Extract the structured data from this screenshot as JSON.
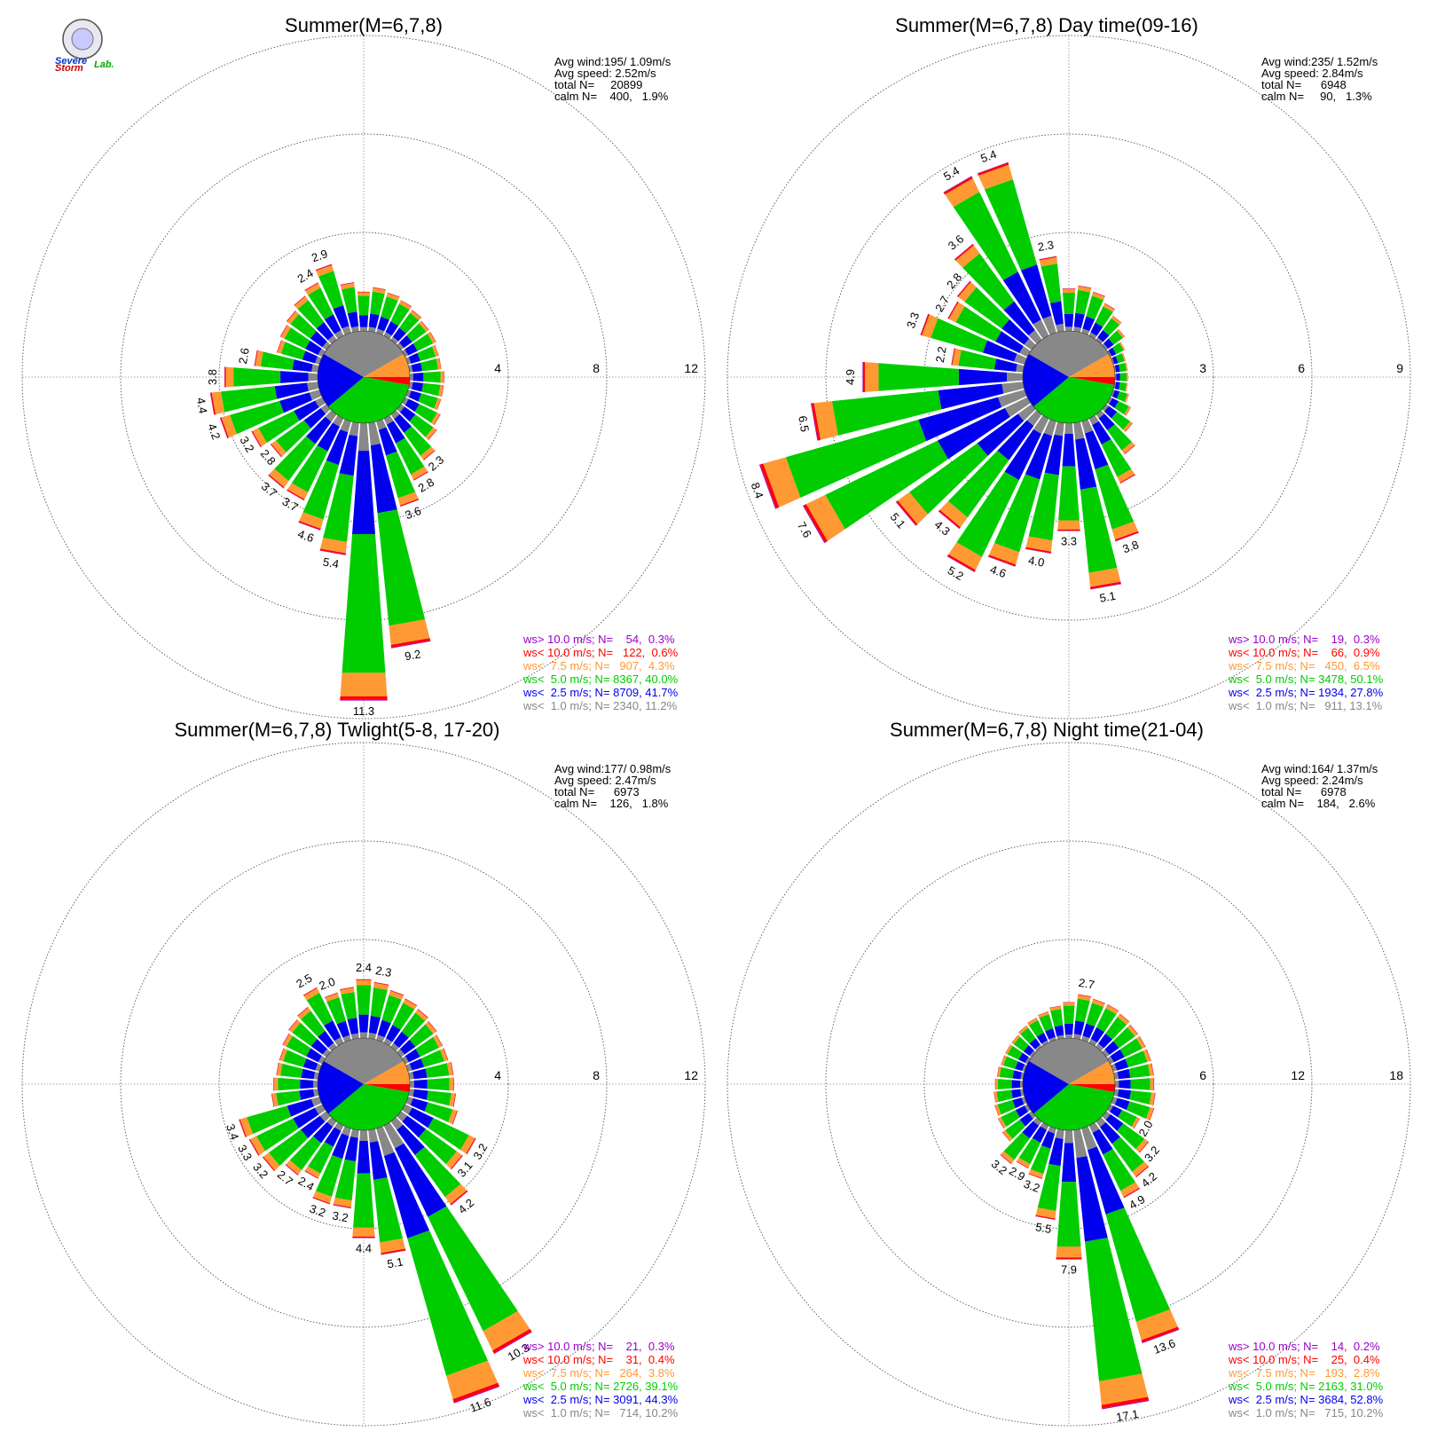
{
  "colors": {
    "gt10": "#9900cc",
    "lt10": "#ff0000",
    "lt7_5": "#ff9933",
    "lt5": "#00cc00",
    "lt2_5": "#0000ee",
    "lt1": "#888888"
  },
  "logo": {
    "text_a": "Severe",
    "text_b": "Storm",
    "text_c": "Lab."
  },
  "chart_data": [
    {
      "type": "windrose",
      "title": "Summer(M=6,7,8)",
      "stats": [
        "Avg wind:195/ 1.09m/s",
        "Avg speed: 2.52m/s",
        "total N=     20899",
        "calm N=    400,   1.9%"
      ],
      "rmax": 12,
      "ring_values": [
        4,
        8,
        12
      ],
      "ring_labels": [
        "4",
        "8",
        "12"
      ],
      "legend": [
        {
          "key": "gt10",
          "text": "ws> 10.0 m/s; N=    54,  0.3%"
        },
        {
          "key": "lt10",
          "text": "ws< 10.0 m/s; N=   122,  0.6%"
        },
        {
          "key": "lt7_5",
          "text": "ws<  7.5 m/s; N=   907,  4.3%"
        },
        {
          "key": "lt5",
          "text": "ws<  5.0 m/s; N= 8367, 40.0%"
        },
        {
          "key": "lt2_5",
          "text": "ws<  2.5 m/s; N= 8709, 41.7%"
        },
        {
          "key": "lt1",
          "text": "ws<  1.0 m/s; N= 2340, 11.2%"
        }
      ],
      "directions": [
        {
          "dir": 0,
          "total": 1.6,
          "label": ""
        },
        {
          "dir": 10,
          "total": 1.8,
          "label": ""
        },
        {
          "dir": 20,
          "total": 1.7,
          "label": ""
        },
        {
          "dir": 30,
          "total": 1.6,
          "label": ""
        },
        {
          "dir": 40,
          "total": 1.5,
          "label": ""
        },
        {
          "dir": 50,
          "total": 1.4,
          "label": ""
        },
        {
          "dir": 60,
          "total": 1.4,
          "label": ""
        },
        {
          "dir": 70,
          "total": 1.3,
          "label": ""
        },
        {
          "dir": 80,
          "total": 1.3,
          "label": ""
        },
        {
          "dir": 90,
          "total": 1.4,
          "label": ""
        },
        {
          "dir": 100,
          "total": 1.4,
          "label": ""
        },
        {
          "dir": 110,
          "total": 1.4,
          "label": ""
        },
        {
          "dir": 120,
          "total": 1.6,
          "label": ""
        },
        {
          "dir": 130,
          "total": 1.8,
          "label": ""
        },
        {
          "dir": 140,
          "total": 2.3,
          "label": "2.3"
        },
        {
          "dir": 150,
          "total": 2.8,
          "label": "2.8"
        },
        {
          "dir": 160,
          "total": 3.6,
          "label": "3.6"
        },
        {
          "dir": 170,
          "total": 9.2,
          "label": "9.2"
        },
        {
          "dir": 180,
          "total": 11.3,
          "label": "11.3"
        },
        {
          "dir": 190,
          "total": 5.4,
          "label": "5.4"
        },
        {
          "dir": 200,
          "total": 4.6,
          "label": "4.6"
        },
        {
          "dir": 210,
          "total": 3.7,
          "label": "3.7"
        },
        {
          "dir": 220,
          "total": 3.7,
          "label": "3.7"
        },
        {
          "dir": 230,
          "total": 2.8,
          "label": "2.8"
        },
        {
          "dir": 240,
          "total": 3.2,
          "label": "3.2"
        },
        {
          "dir": 250,
          "total": 4.2,
          "label": "4.2"
        },
        {
          "dir": 260,
          "total": 4.4,
          "label": "4.4"
        },
        {
          "dir": 270,
          "total": 3.8,
          "label": "3.8"
        },
        {
          "dir": 280,
          "total": 2.6,
          "label": "2.6"
        },
        {
          "dir": 290,
          "total": 1.8,
          "label": ""
        },
        {
          "dir": 300,
          "total": 1.9,
          "label": ""
        },
        {
          "dir": 310,
          "total": 2.0,
          "label": ""
        },
        {
          "dir": 320,
          "total": 2.2,
          "label": ""
        },
        {
          "dir": 330,
          "total": 2.4,
          "label": "2.4"
        },
        {
          "dir": 340,
          "total": 2.9,
          "label": "2.9"
        },
        {
          "dir": 350,
          "total": 2.0,
          "label": ""
        }
      ]
    },
    {
      "type": "windrose",
      "title": "Summer(M=6,7,8) Day time(09-16)",
      "stats": [
        "Avg wind:235/ 1.52m/s",
        "Avg speed: 2.84m/s",
        "total N=      6948",
        "calm N=     90,   1.3%"
      ],
      "rmax": 9,
      "ring_values": [
        3,
        6,
        9
      ],
      "ring_labels": [
        "3",
        "6",
        "9"
      ],
      "legend": [
        {
          "key": "gt10",
          "text": "ws> 10.0 m/s; N=    19,  0.3%"
        },
        {
          "key": "lt10",
          "text": "ws< 10.0 m/s; N=    66,  0.9%"
        },
        {
          "key": "lt7_5",
          "text": "ws<  7.5 m/s; N=   450,  6.5%"
        },
        {
          "key": "lt5",
          "text": "ws<  5.0 m/s; N= 3478, 50.1%"
        },
        {
          "key": "lt2_5",
          "text": "ws<  2.5 m/s; N= 1934, 27.8%"
        },
        {
          "key": "lt1",
          "text": "ws<  1.0 m/s; N=   911, 13.1%"
        }
      ],
      "directions": [
        {
          "dir": 0,
          "total": 1.3,
          "label": ""
        },
        {
          "dir": 10,
          "total": 1.4,
          "label": ""
        },
        {
          "dir": 20,
          "total": 1.3,
          "label": ""
        },
        {
          "dir": 30,
          "total": 1.1,
          "label": ""
        },
        {
          "dir": 40,
          "total": 0.9,
          "label": ""
        },
        {
          "dir": 50,
          "total": 0.7,
          "label": ""
        },
        {
          "dir": 60,
          "total": 0.5,
          "label": ""
        },
        {
          "dir": 70,
          "total": 0.4,
          "label": ""
        },
        {
          "dir": 80,
          "total": 0.4,
          "label": ""
        },
        {
          "dir": 90,
          "total": 0.4,
          "label": ""
        },
        {
          "dir": 100,
          "total": 0.4,
          "label": ""
        },
        {
          "dir": 110,
          "total": 0.5,
          "label": ""
        },
        {
          "dir": 120,
          "total": 0.7,
          "label": ""
        },
        {
          "dir": 130,
          "total": 1.0,
          "label": ""
        },
        {
          "dir": 140,
          "total": 1.5,
          "label": ""
        },
        {
          "dir": 150,
          "total": 2.2,
          "label": ""
        },
        {
          "dir": 160,
          "total": 3.8,
          "label": "3.8"
        },
        {
          "dir": 170,
          "total": 5.1,
          "label": "5.1"
        },
        {
          "dir": 180,
          "total": 3.3,
          "label": "3.3"
        },
        {
          "dir": 190,
          "total": 4.0,
          "label": "4.0"
        },
        {
          "dir": 200,
          "total": 4.6,
          "label": "4.6"
        },
        {
          "dir": 210,
          "total": 5.2,
          "label": "5.2"
        },
        {
          "dir": 220,
          "total": 4.3,
          "label": "4.3"
        },
        {
          "dir": 230,
          "total": 5.1,
          "label": "5.1"
        },
        {
          "dir": 240,
          "total": 7.6,
          "label": "7.6"
        },
        {
          "dir": 250,
          "total": 8.4,
          "label": "8.4"
        },
        {
          "dir": 260,
          "total": 6.5,
          "label": "6.5"
        },
        {
          "dir": 270,
          "total": 4.9,
          "label": "4.9"
        },
        {
          "dir": 280,
          "total": 2.2,
          "label": "2.2"
        },
        {
          "dir": 290,
          "total": 3.3,
          "label": "3.3"
        },
        {
          "dir": 300,
          "total": 2.7,
          "label": "2.7"
        },
        {
          "dir": 310,
          "total": 2.8,
          "label": "2.8"
        },
        {
          "dir": 320,
          "total": 3.6,
          "label": "3.6"
        },
        {
          "dir": 330,
          "total": 5.4,
          "label": "5.4"
        },
        {
          "dir": 340,
          "total": 5.4,
          "label": "5.4"
        },
        {
          "dir": 350,
          "total": 2.3,
          "label": "2.3"
        }
      ]
    },
    {
      "type": "windrose",
      "title": "Summer(M=6,7,8) Twlight(5-8, 17-20)",
      "stats": [
        "Avg wind:177/ 0.98m/s",
        "Avg speed: 2.47m/s",
        "total N=      6973",
        "calm N=    126,   1.8%"
      ],
      "rmax": 12,
      "ring_values": [
        4,
        8,
        12
      ],
      "ring_labels": [
        "4",
        "8",
        "12"
      ],
      "legend": [
        {
          "key": "gt10",
          "text": "ws> 10.0 m/s; N=    21,  0.3%"
        },
        {
          "key": "lt10",
          "text": "ws< 10.0 m/s; N=    31,  0.4%"
        },
        {
          "key": "lt7_5",
          "text": "ws<  7.5 m/s; N=   264,  3.8%"
        },
        {
          "key": "lt5",
          "text": "ws<  5.0 m/s; N= 2726, 39.1%"
        },
        {
          "key": "lt2_5",
          "text": "ws<  2.5 m/s; N= 3091, 44.3%"
        },
        {
          "key": "lt1",
          "text": "ws<  1.0 m/s; N=   714, 10.2%"
        }
      ],
      "directions": [
        {
          "dir": 0,
          "total": 2.4,
          "label": "2.4"
        },
        {
          "dir": 10,
          "total": 2.3,
          "label": "2.3"
        },
        {
          "dir": 20,
          "total": 2.1,
          "label": ""
        },
        {
          "dir": 30,
          "total": 2.0,
          "label": ""
        },
        {
          "dir": 40,
          "total": 1.9,
          "label": ""
        },
        {
          "dir": 50,
          "total": 1.8,
          "label": ""
        },
        {
          "dir": 60,
          "total": 1.7,
          "label": ""
        },
        {
          "dir": 70,
          "total": 1.7,
          "label": ""
        },
        {
          "dir": 80,
          "total": 1.8,
          "label": ""
        },
        {
          "dir": 90,
          "total": 1.8,
          "label": ""
        },
        {
          "dir": 100,
          "total": 1.9,
          "label": ""
        },
        {
          "dir": 110,
          "total": 2.1,
          "label": ""
        },
        {
          "dir": 120,
          "total": 3.2,
          "label": "3.2"
        },
        {
          "dir": 130,
          "total": 3.1,
          "label": "3.1"
        },
        {
          "dir": 140,
          "total": 4.2,
          "label": "4.2"
        },
        {
          "dir": 150,
          "total": 10.3,
          "label": "10.3"
        },
        {
          "dir": 160,
          "total": 11.6,
          "label": "11.6"
        },
        {
          "dir": 170,
          "total": 5.1,
          "label": "5.1"
        },
        {
          "dir": 180,
          "total": 4.4,
          "label": "4.4"
        },
        {
          "dir": 190,
          "total": 3.2,
          "label": "3.2"
        },
        {
          "dir": 200,
          "total": 3.2,
          "label": "3.2"
        },
        {
          "dir": 210,
          "total": 2.4,
          "label": "2.4"
        },
        {
          "dir": 220,
          "total": 2.7,
          "label": "2.7"
        },
        {
          "dir": 230,
          "total": 3.2,
          "label": "3.2"
        },
        {
          "dir": 240,
          "total": 3.3,
          "label": "3.3"
        },
        {
          "dir": 250,
          "total": 3.4,
          "label": "3.4"
        },
        {
          "dir": 260,
          "total": 1.9,
          "label": ""
        },
        {
          "dir": 270,
          "total": 1.8,
          "label": ""
        },
        {
          "dir": 280,
          "total": 1.7,
          "label": ""
        },
        {
          "dir": 290,
          "total": 1.7,
          "label": ""
        },
        {
          "dir": 300,
          "total": 1.8,
          "label": ""
        },
        {
          "dir": 310,
          "total": 1.9,
          "label": ""
        },
        {
          "dir": 320,
          "total": 2.0,
          "label": ""
        },
        {
          "dir": 330,
          "total": 2.5,
          "label": "2.5"
        },
        {
          "dir": 340,
          "total": 2.0,
          "label": "2.0"
        },
        {
          "dir": 350,
          "total": 2.1,
          "label": ""
        }
      ]
    },
    {
      "type": "windrose",
      "title": "Summer(M=6,7,8) Night time(21-04)",
      "stats": [
        "Avg wind:164/ 1.37m/s",
        "Avg speed: 2.24m/s",
        "total N=      6978",
        "calm N=    184,   2.6%"
      ],
      "rmax": 18,
      "ring_values": [
        6,
        12,
        18
      ],
      "ring_labels": [
        "6",
        "12",
        "18"
      ],
      "legend": [
        {
          "key": "gt10",
          "text": "ws> 10.0 m/s; N=    14,  0.2%"
        },
        {
          "key": "lt10",
          "text": "ws< 10.0 m/s; N=    25,  0.4%"
        },
        {
          "key": "lt7_5",
          "text": "ws<  7.5 m/s; N=   193,  2.8%"
        },
        {
          "key": "lt5",
          "text": "ws<  5.0 m/s; N= 2163, 31.0%"
        },
        {
          "key": "lt2_5",
          "text": "ws<  2.5 m/s; N= 3684, 52.8%"
        },
        {
          "key": "lt1",
          "text": "ws<  1.0 m/s; N=   715, 10.2%"
        }
      ],
      "directions": [
        {
          "dir": 0,
          "total": 2.2,
          "label": ""
        },
        {
          "dir": 10,
          "total": 2.7,
          "label": "2.7"
        },
        {
          "dir": 20,
          "total": 2.6,
          "label": ""
        },
        {
          "dir": 30,
          "total": 2.6,
          "label": ""
        },
        {
          "dir": 40,
          "total": 2.5,
          "label": ""
        },
        {
          "dir": 50,
          "total": 2.4,
          "label": ""
        },
        {
          "dir": 60,
          "total": 2.4,
          "label": ""
        },
        {
          "dir": 70,
          "total": 2.4,
          "label": ""
        },
        {
          "dir": 80,
          "total": 2.4,
          "label": ""
        },
        {
          "dir": 90,
          "total": 2.4,
          "label": ""
        },
        {
          "dir": 100,
          "total": 2.5,
          "label": ""
        },
        {
          "dir": 110,
          "total": 2.6,
          "label": ""
        },
        {
          "dir": 120,
          "total": 2.0,
          "label": "2.0"
        },
        {
          "dir": 130,
          "total": 3.2,
          "label": "3.2"
        },
        {
          "dir": 140,
          "total": 4.2,
          "label": "4.2"
        },
        {
          "dir": 150,
          "total": 4.9,
          "label": "4.9"
        },
        {
          "dir": 160,
          "total": 13.6,
          "label": "13.6"
        },
        {
          "dir": 170,
          "total": 17.1,
          "label": "17.1"
        },
        {
          "dir": 180,
          "total": 7.9,
          "label": "7.9"
        },
        {
          "dir": 190,
          "total": 5.5,
          "label": "5.5"
        },
        {
          "dir": 200,
          "total": 3.2,
          "label": "3.2"
        },
        {
          "dir": 210,
          "total": 2.9,
          "label": "2.9"
        },
        {
          "dir": 220,
          "total": 3.2,
          "label": "3.2"
        },
        {
          "dir": 230,
          "total": 2.2,
          "label": ""
        },
        {
          "dir": 240,
          "total": 2.0,
          "label": ""
        },
        {
          "dir": 250,
          "total": 1.9,
          "label": ""
        },
        {
          "dir": 260,
          "total": 1.8,
          "label": ""
        },
        {
          "dir": 270,
          "total": 1.7,
          "label": ""
        },
        {
          "dir": 280,
          "total": 1.6,
          "label": ""
        },
        {
          "dir": 290,
          "total": 1.5,
          "label": ""
        },
        {
          "dir": 300,
          "total": 1.5,
          "label": ""
        },
        {
          "dir": 310,
          "total": 1.5,
          "label": ""
        },
        {
          "dir": 320,
          "total": 1.6,
          "label": ""
        },
        {
          "dir": 330,
          "total": 1.7,
          "label": ""
        },
        {
          "dir": 340,
          "total": 1.8,
          "label": ""
        },
        {
          "dir": 350,
          "total": 2.0,
          "label": ""
        }
      ]
    }
  ]
}
